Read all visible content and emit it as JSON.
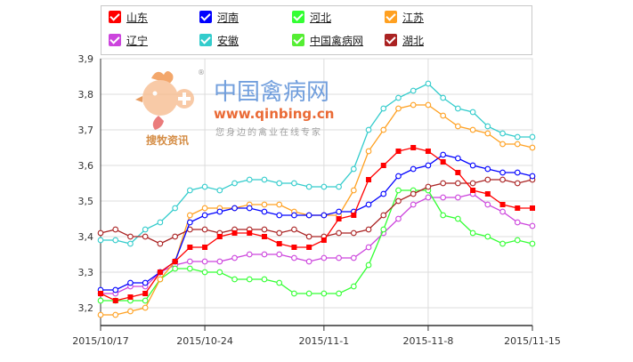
{
  "watermark": {
    "brand_cn": "中国禽病网",
    "url": "www.qinbing.cn",
    "tag": "搜牧资讯",
    "slogan": "您身边的禽业在线专家",
    "reg_mark": "®"
  },
  "chart_data": {
    "type": "line",
    "title": "",
    "xlabel": "",
    "ylabel": "",
    "ylim": [
      3.15,
      3.9
    ],
    "yticks": [
      3.2,
      3.3,
      3.4,
      3.5,
      3.6,
      3.7,
      3.8,
      3.9
    ],
    "ytick_labels": [
      "3,2",
      "3,3",
      "3,4",
      "3,5",
      "3,6",
      "3,7",
      "3,8",
      "3,9"
    ],
    "x_count": 30,
    "xticks": [
      {
        "index": 0,
        "label": "2015/10/17"
      },
      {
        "index": 7,
        "label": "2015/10-24"
      },
      {
        "index": 15,
        "label": "2015/11-1"
      },
      {
        "index": 22,
        "label": "2015-11-8"
      },
      {
        "index": 29,
        "label": "2015/11-15"
      }
    ],
    "grid": true,
    "legend_position": "top",
    "series": [
      {
        "name": "山东",
        "color": "#ff0000",
        "marker": "square",
        "values": [
          3.24,
          3.22,
          3.23,
          3.24,
          3.3,
          3.33,
          3.37,
          3.37,
          3.4,
          3.41,
          3.41,
          3.4,
          3.38,
          3.37,
          3.37,
          3.39,
          3.45,
          3.46,
          3.56,
          3.6,
          3.64,
          3.65,
          3.64,
          3.61,
          3.58,
          3.53,
          3.52,
          3.49,
          3.48,
          3.48
        ]
      },
      {
        "name": "河南",
        "color": "#0000ff",
        "marker": "circle",
        "values": [
          3.25,
          3.25,
          3.27,
          3.27,
          3.3,
          3.33,
          3.44,
          3.46,
          3.47,
          3.48,
          3.48,
          3.47,
          3.46,
          3.46,
          3.46,
          3.46,
          3.47,
          3.47,
          3.49,
          3.52,
          3.57,
          3.59,
          3.6,
          3.63,
          3.62,
          3.6,
          3.59,
          3.58,
          3.58,
          3.57
        ]
      },
      {
        "name": "河北",
        "color": "#33ff33",
        "marker": "circle",
        "values": [
          3.22,
          3.22,
          3.22,
          3.22,
          3.28,
          3.31,
          3.31,
          3.3,
          3.3,
          3.28,
          3.28,
          3.28,
          3.27,
          3.24,
          3.24,
          3.24,
          3.24,
          3.26,
          3.32,
          3.42,
          3.53,
          3.53,
          3.53,
          3.46,
          3.45,
          3.41,
          3.4,
          3.38,
          3.39,
          3.38
        ]
      },
      {
        "name": "江苏",
        "color": "#ffa020",
        "marker": "circle",
        "values": [
          3.18,
          3.18,
          3.19,
          3.2,
          3.28,
          3.33,
          3.46,
          3.48,
          3.48,
          3.48,
          3.49,
          3.49,
          3.49,
          3.47,
          3.46,
          3.46,
          3.46,
          3.53,
          3.64,
          3.7,
          3.76,
          3.77,
          3.77,
          3.74,
          3.71,
          3.7,
          3.69,
          3.66,
          3.66,
          3.65
        ]
      },
      {
        "name": "辽宁",
        "color": "#cc44dd",
        "marker": "circle",
        "values": [
          3.24,
          3.24,
          3.26,
          3.26,
          3.3,
          3.32,
          3.33,
          3.33,
          3.33,
          3.34,
          3.35,
          3.35,
          3.35,
          3.34,
          3.33,
          3.34,
          3.34,
          3.34,
          3.37,
          3.41,
          3.45,
          3.49,
          3.51,
          3.51,
          3.51,
          3.52,
          3.49,
          3.47,
          3.44,
          3.43
        ]
      },
      {
        "name": "安徽",
        "color": "#33cccc",
        "marker": "circle",
        "values": [
          3.39,
          3.39,
          3.38,
          3.42,
          3.44,
          3.48,
          3.53,
          3.54,
          3.53,
          3.55,
          3.56,
          3.56,
          3.55,
          3.55,
          3.54,
          3.54,
          3.54,
          3.59,
          3.7,
          3.76,
          3.79,
          3.81,
          3.83,
          3.79,
          3.76,
          3.75,
          3.71,
          3.69,
          3.68,
          3.68
        ]
      },
      {
        "name": "中国禽病网",
        "color": "#55ee33",
        "marker": "circle",
        "values": []
      },
      {
        "name": "湖北",
        "color": "#aa2222",
        "marker": "circle",
        "values": [
          3.41,
          3.42,
          3.4,
          3.4,
          3.38,
          3.4,
          3.42,
          3.42,
          3.41,
          3.42,
          3.42,
          3.42,
          3.41,
          3.42,
          3.4,
          3.4,
          3.41,
          3.41,
          3.42,
          3.46,
          3.5,
          3.52,
          3.54,
          3.55,
          3.55,
          3.55,
          3.56,
          3.56,
          3.55,
          3.56
        ]
      }
    ]
  }
}
